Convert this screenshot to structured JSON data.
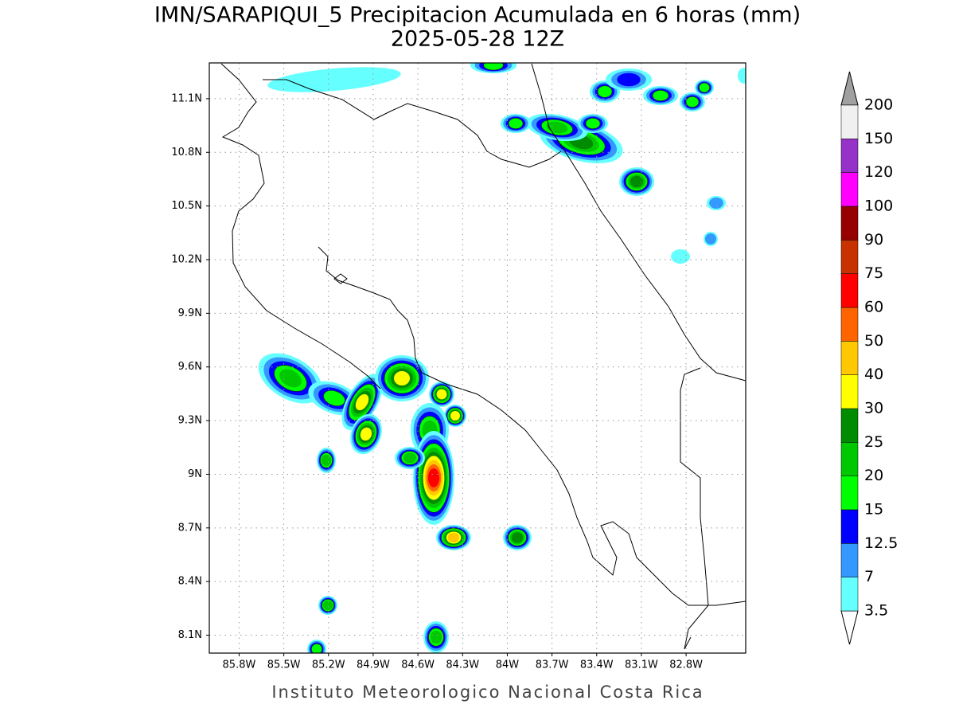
{
  "title": "IMN/SARAPIQUI_5 Precipitacion Acumulada en 6 horas (mm)",
  "subtitle": "2025-05-28 12Z",
  "footer": "Instituto Meteorologico Nacional Costa Rica",
  "map": {
    "lonlim": [
      -86.0,
      -82.4
    ],
    "latlim": [
      8.0,
      11.3
    ],
    "grid": true,
    "lonticks": [
      {
        "value": -85.8,
        "label": "85.8W"
      },
      {
        "value": -85.5,
        "label": "85.5W"
      },
      {
        "value": -85.2,
        "label": "85.2W"
      },
      {
        "value": -84.9,
        "label": "84.9W"
      },
      {
        "value": -84.6,
        "label": "84.6W"
      },
      {
        "value": -84.3,
        "label": "84.3W"
      },
      {
        "value": -84.0,
        "label": "84W"
      },
      {
        "value": -83.7,
        "label": "83.7W"
      },
      {
        "value": -83.4,
        "label": "83.4W"
      },
      {
        "value": -83.1,
        "label": "83.1W"
      },
      {
        "value": -82.8,
        "label": "82.8W"
      }
    ],
    "latticks": [
      {
        "value": 8.1,
        "label": "8.1N"
      },
      {
        "value": 8.4,
        "label": "8.4N"
      },
      {
        "value": 8.7,
        "label": "8.7N"
      },
      {
        "value": 9.0,
        "label": "9N"
      },
      {
        "value": 9.3,
        "label": "9.3N"
      },
      {
        "value": 9.6,
        "label": "9.6N"
      },
      {
        "value": 9.9,
        "label": "9.9N"
      },
      {
        "value": 10.2,
        "label": "10.2N"
      },
      {
        "value": 10.5,
        "label": "10.5N"
      },
      {
        "value": 10.8,
        "label": "10.8N"
      },
      {
        "value": 11.1,
        "label": "11.1N"
      }
    ]
  },
  "colorbar": {
    "levels": [
      3.5,
      7,
      12.5,
      15,
      20,
      25,
      30,
      40,
      50,
      60,
      75,
      90,
      100,
      120,
      150,
      200
    ],
    "colors": [
      "#ffffff",
      "#66ffff",
      "#3399ff",
      "#0000ff",
      "#00ff00",
      "#00c800",
      "#008c00",
      "#ffff00",
      "#ffc800",
      "#ff6400",
      "#ff0000",
      "#c83200",
      "#960000",
      "#ff00ff",
      "#9632c8",
      "#f0f0f0",
      "#a0a0a0"
    ]
  }
}
